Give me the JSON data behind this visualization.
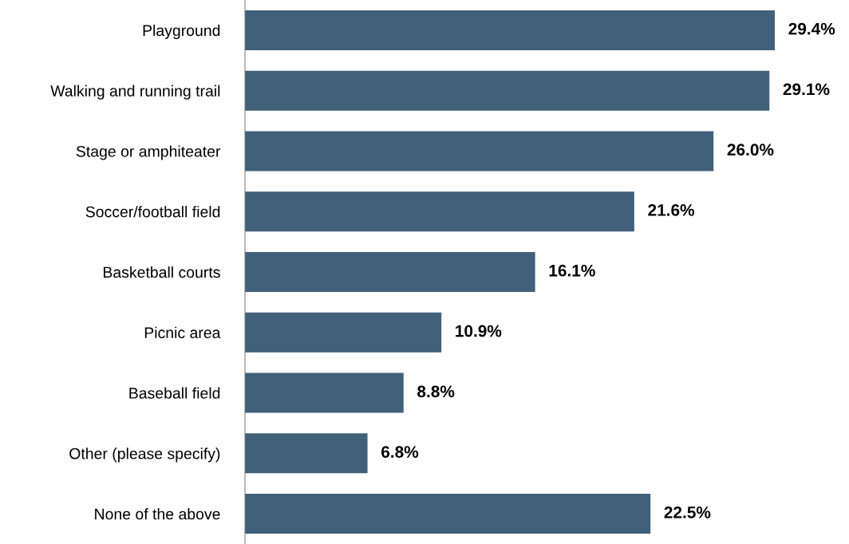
{
  "chart_data": {
    "type": "bar",
    "orientation": "horizontal",
    "categories": [
      "Playground",
      "Walking and running trail",
      "Stage or amphiteater",
      "Soccer/football field",
      "Basketball courts",
      "Picnic area",
      "Baseball field",
      "Other (please specify)",
      "None of the above"
    ],
    "values": [
      29.4,
      29.1,
      26.0,
      21.6,
      16.1,
      10.9,
      8.8,
      6.8,
      22.5
    ],
    "value_labels": [
      "29.4%",
      "29.1%",
      "26.0%",
      "21.6%",
      "16.1%",
      "10.9%",
      "8.8%",
      "6.8%",
      "22.5%"
    ],
    "color": "#41607a",
    "tick_labels": "y"
  }
}
